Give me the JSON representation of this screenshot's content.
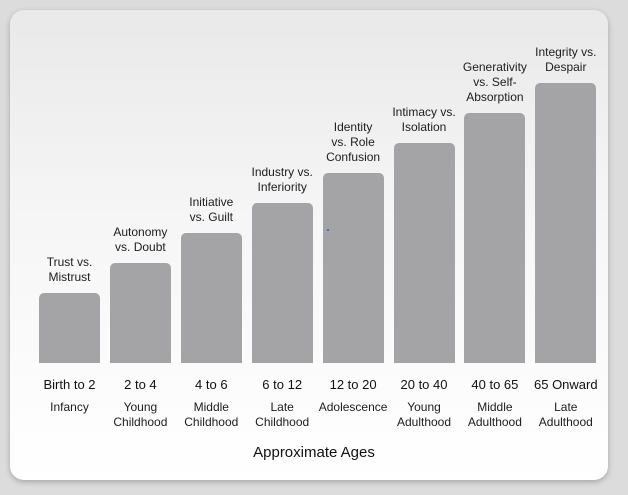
{
  "chart_data": {
    "type": "bar",
    "categories": [
      {
        "stage": "Trust vs.\nMistrust",
        "age": "Birth to 2",
        "period": "Infancy"
      },
      {
        "stage": "Autonomy\nvs. Doubt",
        "age": "2 to 4",
        "period": "Young\nChildhood"
      },
      {
        "stage": "Initiative\nvs. Guilt",
        "age": "4 to 6",
        "period": "Middle\nChildhood"
      },
      {
        "stage": "Industry vs.\nInferiority",
        "age": "6 to 12",
        "period": "Late\nChildhood"
      },
      {
        "stage": "Identity\nvs. Role\nConfusion",
        "age": "12 to 20",
        "period": "Adolescence"
      },
      {
        "stage": "Intimacy vs.\nIsolation",
        "age": "20 to 40",
        "period": "Young\nAdulthood"
      },
      {
        "stage": "Generativity\nvs. Self-\nAbsorption",
        "age": "40 to 65",
        "period": "Middle\nAdulthood"
      },
      {
        "stage": "Integrity vs.\nDespair",
        "age": "65 Onward",
        "period": "Late\nAdulthood"
      }
    ],
    "values": [
      1,
      2,
      3,
      4,
      5,
      6,
      7,
      8
    ],
    "xlabel": "Approximate Ages",
    "bar_color": "#a4a4a7"
  }
}
